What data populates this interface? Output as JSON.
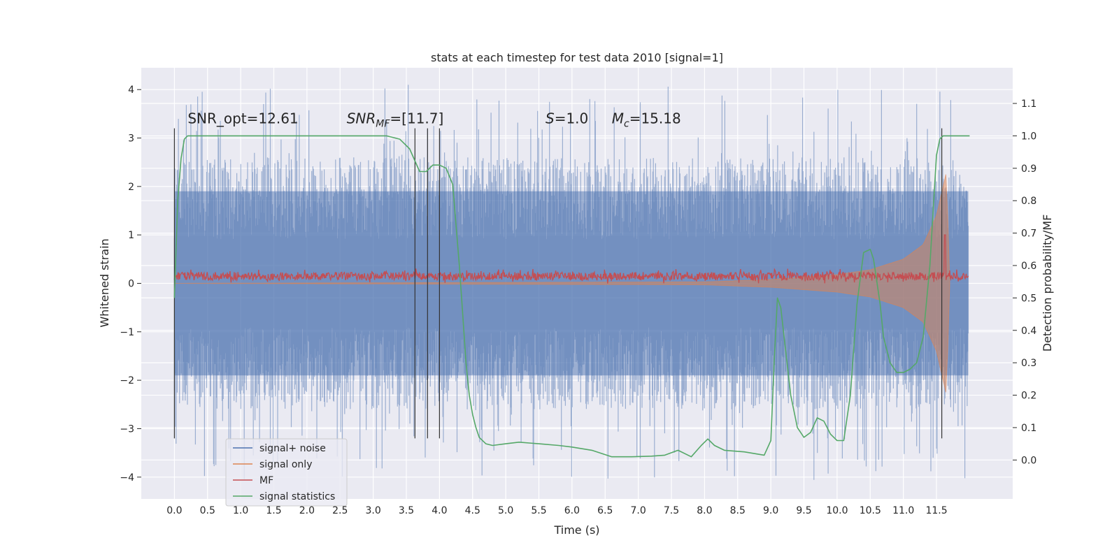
{
  "chart_data": {
    "type": "line",
    "title": "stats at each timestep for test data 2010 [signal=1]",
    "xlabel": "Time (s)",
    "ylabel": "Whitened strain",
    "y2label": "Detection probability/MF",
    "xlim": [
      -0.5,
      12.65
    ],
    "ylim": [
      -4.45,
      4.45
    ],
    "y2lim": [
      -0.12,
      1.21
    ],
    "x_ticks": [
      0.0,
      0.5,
      1.0,
      1.5,
      2.0,
      2.5,
      3.0,
      3.5,
      4.0,
      4.5,
      5.0,
      5.5,
      6.0,
      6.5,
      7.0,
      7.5,
      8.0,
      8.5,
      9.0,
      9.5,
      10.0,
      10.5,
      11.0,
      11.5
    ],
    "x_tick_labels": [
      "0.0",
      "0.5",
      "1.0",
      "1.5",
      "2.0",
      "2.5",
      "3.0",
      "3.5",
      "4.0",
      "4.5",
      "5.0",
      "5.5",
      "6.0",
      "6.5",
      "7.0",
      "7.5",
      "8.0",
      "8.5",
      "9.0",
      "9.5",
      "10.0",
      "10.5",
      "11.0",
      "11.5"
    ],
    "y_ticks": [
      -4,
      -3,
      -2,
      -1,
      0,
      1,
      2,
      3,
      4
    ],
    "y_tick_labels": [
      "−4",
      "−3",
      "−2",
      "−1",
      "0",
      "1",
      "2",
      "3",
      "4"
    ],
    "y2_ticks": [
      0.0,
      0.1,
      0.2,
      0.3,
      0.4,
      0.5,
      0.6,
      0.7,
      0.8,
      0.9,
      1.0,
      1.1
    ],
    "y2_tick_labels": [
      "0.0",
      "0.1",
      "0.2",
      "0.3",
      "0.4",
      "0.5",
      "0.6",
      "0.7",
      "0.8",
      "0.9",
      "1.0",
      "1.1"
    ],
    "grid": true,
    "legend_position": "lower-left",
    "annotations": [
      {
        "text": "SNR_opt=12.61",
        "x": 0.2,
        "y": 3.3
      },
      {
        "text": "SNR_MF=[11.7]",
        "x": 2.6,
        "y": 3.3
      },
      {
        "text": "S=1.0",
        "x": 5.6,
        "y": 3.3
      },
      {
        "text": "M_c=15.18",
        "x": 6.6,
        "y": 3.3
      }
    ],
    "vlines": [
      0.0,
      3.63,
      3.82,
      4.0,
      11.58
    ],
    "vline_range": [
      -3.2,
      3.2
    ],
    "series": [
      {
        "name": "signal+ noise",
        "color": "#4c72b0",
        "axis": "left",
        "kind": "noise",
        "x_range": [
          0,
          11.98
        ],
        "typical_amplitude": 2.6,
        "peak_amplitude": 4.1
      },
      {
        "name": "signal only",
        "color": "#dd8452",
        "axis": "left",
        "kind": "chirp",
        "x": [
          0,
          8.0,
          9.0,
          10.0,
          10.5,
          11.0,
          11.3,
          11.5,
          11.6,
          11.65,
          11.7
        ],
        "envelope": [
          0.0,
          0.03,
          0.08,
          0.18,
          0.28,
          0.5,
          0.8,
          1.4,
          2.0,
          2.3,
          0.0
        ]
      },
      {
        "name": "MF",
        "color": "#c44e52",
        "axis": "left",
        "kind": "mf",
        "x_range": [
          0,
          11.98
        ],
        "mean": 0.15,
        "amplitude": 0.12,
        "spike": {
          "x": 11.63,
          "y": 1.0
        }
      },
      {
        "name": "signal statistics",
        "color": "#55a868",
        "axis": "right",
        "kind": "line",
        "x": [
          0.0,
          0.05,
          0.1,
          0.15,
          0.2,
          0.3,
          0.5,
          1.0,
          2.0,
          2.8,
          3.2,
          3.4,
          3.55,
          3.7,
          3.8,
          3.9,
          4.0,
          4.1,
          4.2,
          4.3,
          4.35,
          4.4,
          4.45,
          4.5,
          4.55,
          4.6,
          4.7,
          4.8,
          5.0,
          5.2,
          5.5,
          5.8,
          6.0,
          6.3,
          6.6,
          6.9,
          7.2,
          7.4,
          7.6,
          7.8,
          7.95,
          8.05,
          8.15,
          8.3,
          8.6,
          8.9,
          9.0,
          9.05,
          9.1,
          9.15,
          9.2,
          9.3,
          9.4,
          9.5,
          9.6,
          9.7,
          9.8,
          9.9,
          10.0,
          10.1,
          10.2,
          10.3,
          10.4,
          10.5,
          10.55,
          10.6,
          10.65,
          10.7,
          10.8,
          10.9,
          11.0,
          11.1,
          11.2,
          11.3,
          11.4,
          11.5,
          11.55,
          11.6,
          11.7,
          11.8,
          12.0
        ],
        "y": [
          0.5,
          0.8,
          0.93,
          0.99,
          1.0,
          1.0,
          1.0,
          1.0,
          1.0,
          1.0,
          1.0,
          0.99,
          0.96,
          0.89,
          0.89,
          0.91,
          0.91,
          0.9,
          0.85,
          0.6,
          0.45,
          0.3,
          0.2,
          0.14,
          0.1,
          0.07,
          0.05,
          0.045,
          0.05,
          0.055,
          0.05,
          0.045,
          0.04,
          0.03,
          0.01,
          0.01,
          0.012,
          0.015,
          0.03,
          0.01,
          0.045,
          0.065,
          0.045,
          0.03,
          0.025,
          0.015,
          0.06,
          0.3,
          0.5,
          0.47,
          0.38,
          0.2,
          0.1,
          0.07,
          0.085,
          0.13,
          0.12,
          0.08,
          0.06,
          0.06,
          0.2,
          0.48,
          0.64,
          0.65,
          0.62,
          0.55,
          0.48,
          0.38,
          0.3,
          0.27,
          0.27,
          0.28,
          0.3,
          0.38,
          0.6,
          0.94,
          0.99,
          1.0,
          1.0,
          1.0,
          1.0
        ]
      }
    ]
  }
}
